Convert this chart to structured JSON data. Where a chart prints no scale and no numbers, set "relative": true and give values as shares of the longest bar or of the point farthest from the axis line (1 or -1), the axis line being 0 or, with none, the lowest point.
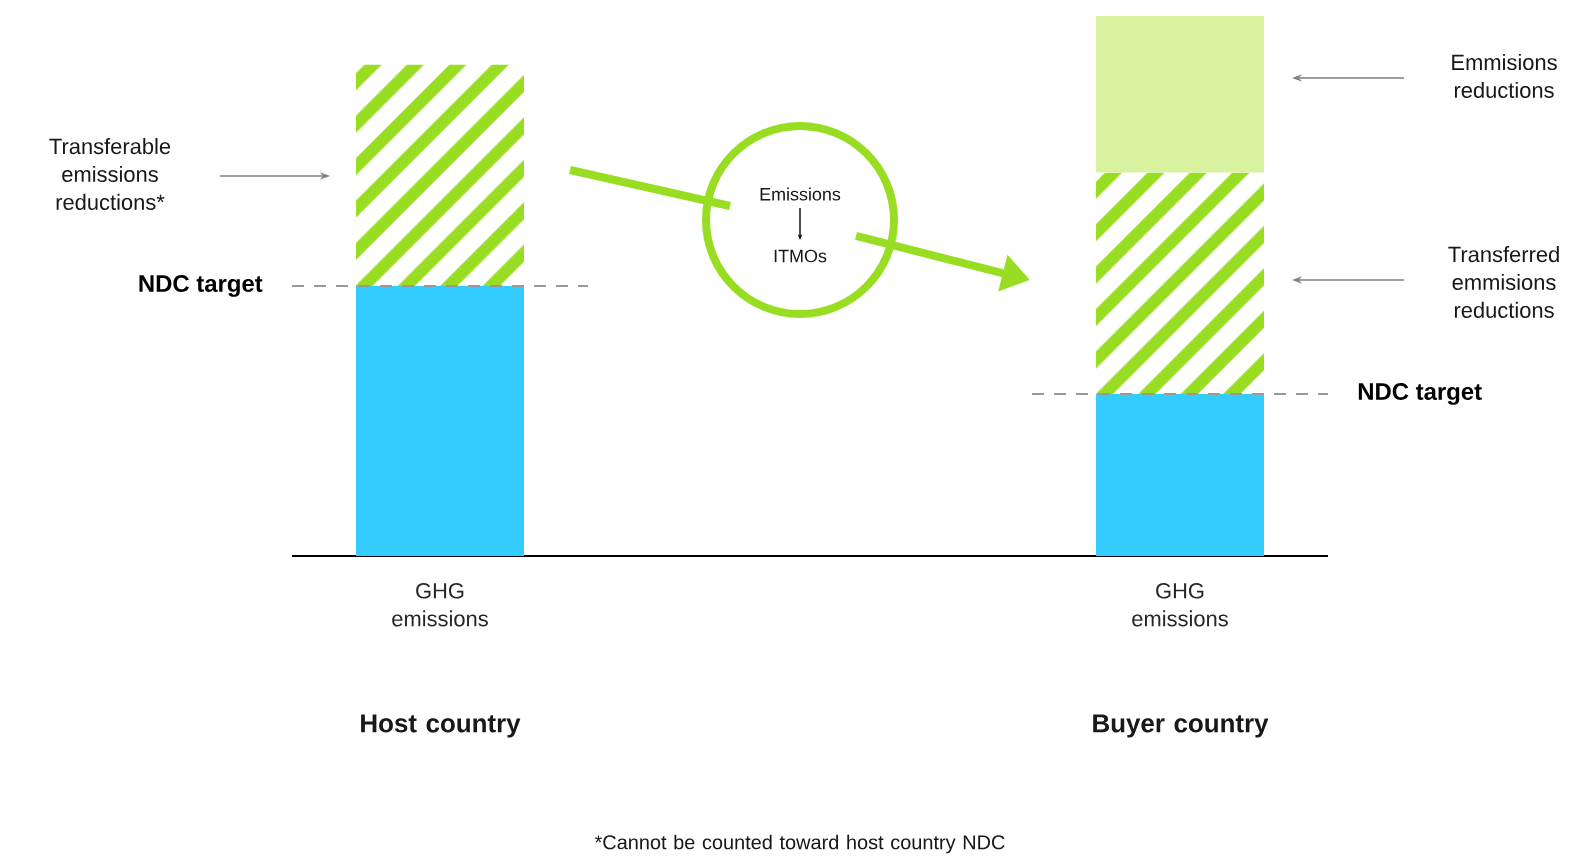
{
  "chart_data": {
    "type": "bar",
    "relative": true,
    "stacked": true,
    "categories": [
      "GHG emissions",
      "GHG emissions"
    ],
    "series": [
      {
        "color": "#33ccff",
        "values": [
          0.5,
          0.3
        ]
      },
      {
        "color": "#99dd22",
        "values": [
          0.41,
          0.41
        ]
      },
      {
        "color": "#d9f2a0",
        "values": [
          null,
          0.29
        ]
      }
    ],
    "ref_lines": [
      {
        "axis": "y",
        "value": 0.5,
        "label": "NDC target",
        "color": "#999999",
        "line_style": "dashed"
      },
      {
        "axis": "y",
        "value": 0.3,
        "label": "NDC target",
        "color": "#999999",
        "line_style": "dashed"
      }
    ],
    "annotations": [
      "Transferable emissions reductions*",
      "Emmisions reductions",
      "Transferred emmisions reductions",
      "Emissions",
      "ITMOs",
      "Host country",
      "Buyer country",
      "*Cannot be counted toward host country NDC"
    ]
  }
}
